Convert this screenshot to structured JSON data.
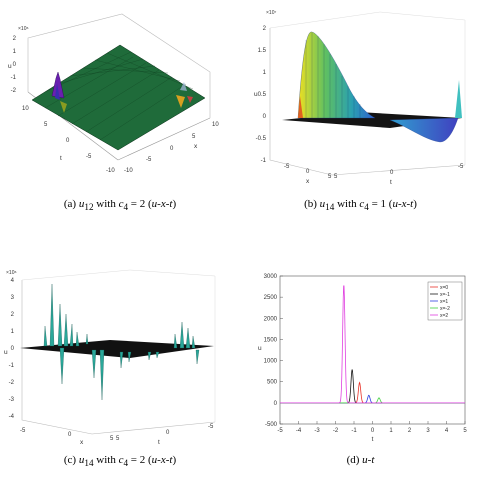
{
  "captions": {
    "a": {
      "label": "(a)",
      "sym": "u",
      "sub": "12",
      "text": " with ",
      "param": "c",
      "psub": "4",
      "eq": " = 2 (",
      "vars": "u-x-t",
      "close": ")"
    },
    "b": {
      "label": "(b)",
      "sym": "u",
      "sub": "14",
      "text": " with ",
      "param": "c",
      "psub": "4",
      "eq": " = 1 (",
      "vars": "u-x-t",
      "close": ")"
    },
    "c": {
      "label": "(c)",
      "sym": "u",
      "sub": "14",
      "text": " with ",
      "param": "c",
      "psub": "4",
      "eq": " = 2 (",
      "vars": "u-x-t",
      "close": ")"
    },
    "d": {
      "label": "(d)",
      "vars": "u-t"
    }
  },
  "panel_a": {
    "scale": "×10⁶",
    "z_ticks": [
      "2",
      "1",
      "0",
      "-1",
      "-2"
    ],
    "x_ticks": [
      "10",
      "5",
      "0",
      "-5",
      "-10"
    ],
    "t_ticks": [
      "10",
      "5",
      "0",
      "-5",
      "-10"
    ],
    "zlabel": "u",
    "xlabel": "x",
    "tlabel": "t",
    "colors": {
      "surface": "#1f6b3a",
      "edge": "#0a2f18"
    }
  },
  "panel_b": {
    "scale": "×10⁷",
    "z_ticks": [
      "2",
      "1.5",
      "1",
      "0.5",
      "0",
      "-0.5",
      "-1"
    ],
    "x_ticks": [
      "-5",
      "0",
      "5"
    ],
    "t_ticks": [
      "5",
      "0",
      "-5"
    ],
    "zlabel": "u",
    "xlabel": "x",
    "tlabel": "t"
  },
  "panel_c": {
    "scale": "×10⁶",
    "z_ticks": [
      "4",
      "3",
      "2",
      "1",
      "0",
      "-1",
      "-2",
      "-3",
      "-4"
    ],
    "x_ticks": [
      "-5",
      "0",
      "5"
    ],
    "t_ticks": [
      "5",
      "0",
      "-5"
    ],
    "zlabel": "u",
    "xlabel": "x",
    "tlabel": "t"
  },
  "chart_data": {
    "type": "line",
    "ylabel": "u",
    "xlabel": "t",
    "xlim": [
      -5,
      5
    ],
    "ylim": [
      -500,
      3000
    ],
    "x_ticks": [
      -5,
      -4,
      -3,
      -2,
      -1,
      0,
      1,
      2,
      3,
      4,
      5
    ],
    "y_ticks": [
      -500,
      0,
      500,
      1000,
      1500,
      2000,
      2500,
      3000
    ],
    "series": [
      {
        "name": "x=0",
        "color": "#e8332a",
        "peak_t": -0.7,
        "peak_u": 480
      },
      {
        "name": "x=-1",
        "color": "#1a1a1a",
        "peak_t": -1.1,
        "peak_u": 790
      },
      {
        "name": "x=1",
        "color": "#2d3ee0",
        "peak_t": -0.2,
        "peak_u": 180
      },
      {
        "name": "x=-2",
        "color": "#40d040",
        "peak_t": 0.35,
        "peak_u": 120
      },
      {
        "name": "x=2",
        "color": "#e040e0",
        "peak_t": -1.55,
        "peak_u": 2800
      }
    ]
  }
}
